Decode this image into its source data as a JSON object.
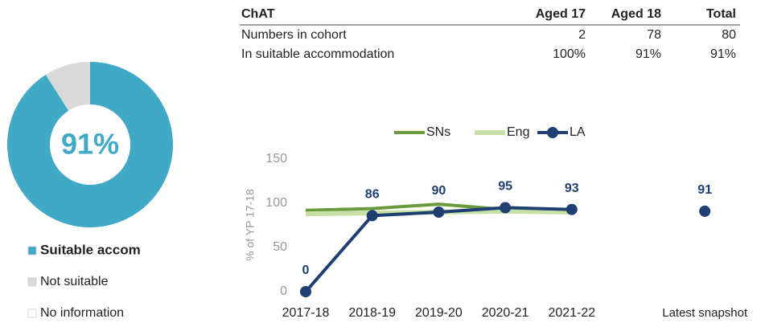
{
  "table": {
    "header": [
      "ChAT",
      "Aged 17",
      "Aged 18",
      "Total"
    ],
    "rows": [
      [
        "Numbers in cohort",
        "2",
        "78",
        "80"
      ],
      [
        "In suitable accommodation",
        "100%",
        "91%",
        "91%"
      ]
    ]
  },
  "chart_data": [
    {
      "type": "pie",
      "center_label": "91%",
      "categories": [
        "Suitable accom",
        "Not suitable",
        "No information"
      ],
      "values": [
        91,
        9,
        0
      ],
      "colors": [
        "#3fa9c6",
        "#d9d9d9",
        "#ffffff"
      ]
    },
    {
      "type": "line",
      "ylabel": "% of YP 17-18",
      "categories": [
        "2017-18",
        "2018-19",
        "2019-20",
        "2020-21",
        "2021-22",
        null,
        "Latest snapshot"
      ],
      "ylim": [
        0,
        150
      ],
      "yticks": [
        0,
        50,
        100,
        150
      ],
      "series": [
        {
          "name": "SNs",
          "color": "#6b9a3c",
          "values": [
            92,
            94,
            99,
            93,
            91,
            null,
            null
          ]
        },
        {
          "name": "Eng",
          "color": "#c6e0a6",
          "values": [
            88,
            89,
            90,
            91,
            90,
            null,
            null
          ]
        },
        {
          "name": "LA",
          "color": "#1f3f73",
          "values": [
            0,
            86,
            90,
            95,
            93,
            null,
            91
          ]
        }
      ]
    }
  ]
}
